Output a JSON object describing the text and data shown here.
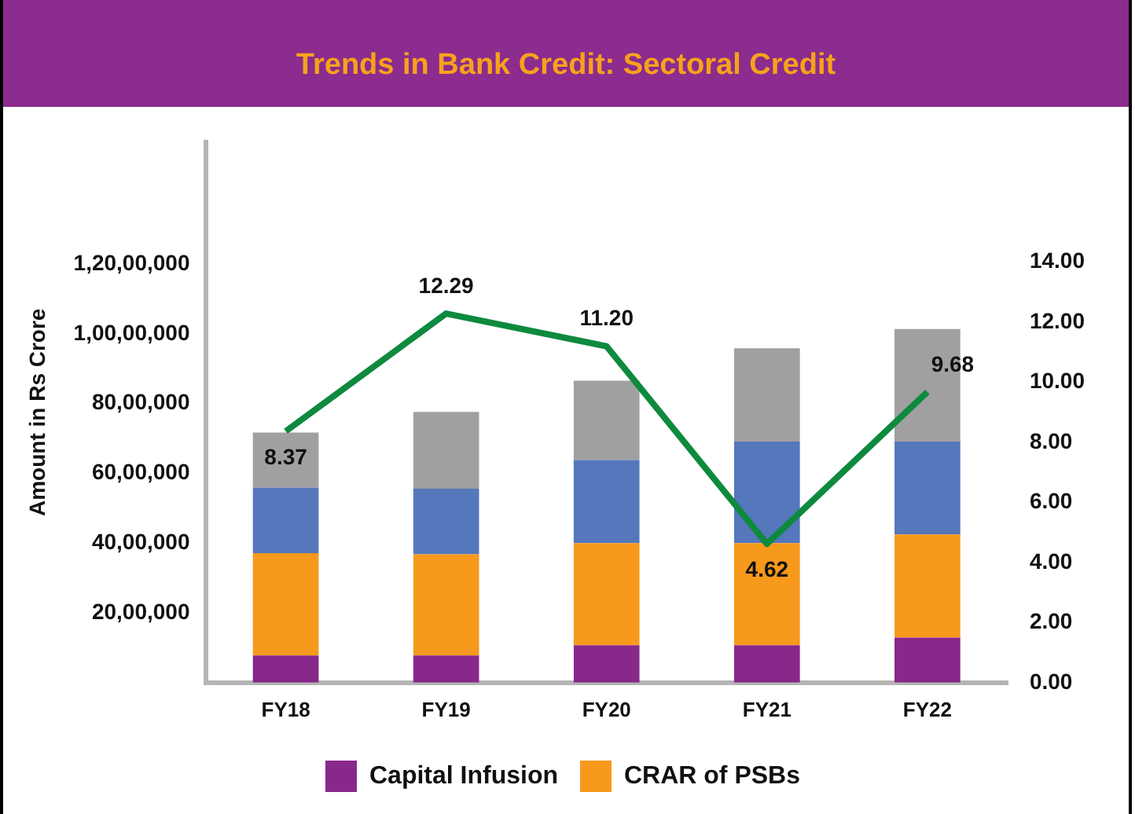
{
  "chart_data": {
    "type": "bar",
    "title": "Trends in Bank Credit: Sectoral Credit",
    "ylabel": "Amount in Rs Crore",
    "categories": [
      "FY18",
      "FY19",
      "FY20",
      "FY21",
      "FY22"
    ],
    "stacked": true,
    "series": [
      {
        "name": "Capital Infusion",
        "color": "#88288a",
        "values": [
          780000,
          780000,
          1070000,
          1070000,
          1290000
        ]
      },
      {
        "name": "CRAR of PSBs",
        "color": "#f7991c",
        "values": [
          2930000,
          2900000,
          2930000,
          2930000,
          2960000
        ]
      },
      {
        "color": "#5577bb",
        "values": [
          1880000,
          1880000,
          2380000,
          2910000,
          2660000
        ]
      },
      {
        "color": "#a0a0a0",
        "values": [
          1580000,
          2200000,
          2280000,
          2680000,
          3230000
        ]
      },
      {
        "type": "line",
        "axis": "y2",
        "color": "#0e8a3e",
        "values": [
          8.37,
          12.29,
          11.2,
          4.62,
          9.68
        ],
        "value_labels": [
          "8.37",
          "12.29",
          "11.20",
          "4.62",
          "9.68"
        ]
      }
    ],
    "ylim": [
      0,
      15500000
    ],
    "yticks": [
      {
        "value": 2000000,
        "label": "20,00,000"
      },
      {
        "value": 4000000,
        "label": "40,00,000"
      },
      {
        "value": 6000000,
        "label": "60,00,000"
      },
      {
        "value": 8000000,
        "label": "80,00,000"
      },
      {
        "value": 10000000,
        "label": "1,00,00,000"
      },
      {
        "value": 12000000,
        "label": "1,20,00,000"
      }
    ],
    "y2lim": [
      0,
      18
    ],
    "y2ticks": [
      {
        "value": 0,
        "label": "0.00"
      },
      {
        "value": 2,
        "label": "2.00"
      },
      {
        "value": 4,
        "label": "4.00"
      },
      {
        "value": 6,
        "label": "6.00"
      },
      {
        "value": 8,
        "label": "8.00"
      },
      {
        "value": 10,
        "label": "10.00"
      },
      {
        "value": 12,
        "label": "12.00"
      },
      {
        "value": 14,
        "label": "14.00"
      }
    ],
    "grid": false,
    "legend": "bottom",
    "marker": "none"
  }
}
